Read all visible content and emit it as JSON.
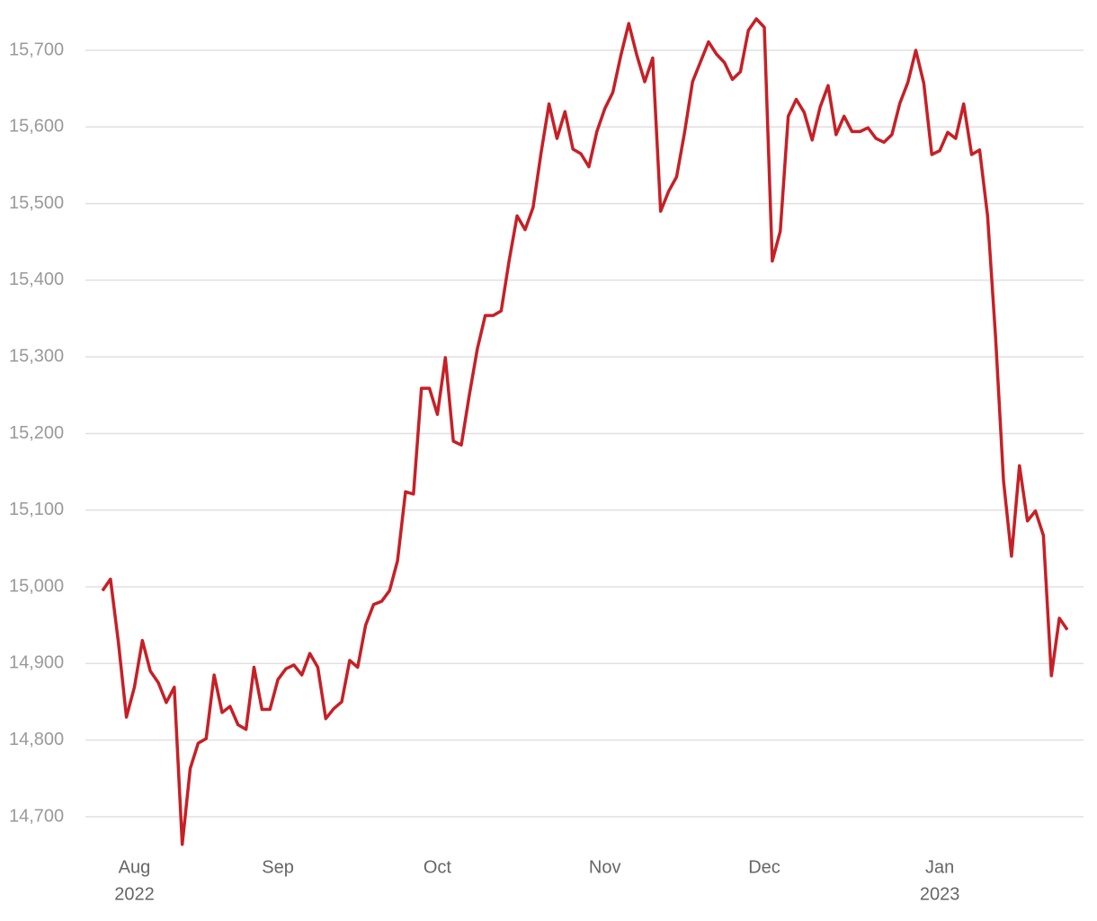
{
  "chart_data": {
    "type": "line",
    "categories": [
      null,
      null,
      null,
      null,
      "Aug",
      null,
      null,
      null,
      null,
      null,
      null,
      null,
      null,
      null,
      null,
      null,
      null,
      null,
      null,
      null,
      null,
      null,
      "Sep",
      null,
      null,
      null,
      null,
      null,
      null,
      null,
      null,
      null,
      null,
      null,
      null,
      null,
      null,
      null,
      null,
      null,
      null,
      null,
      "Oct",
      null,
      null,
      null,
      null,
      null,
      null,
      null,
      null,
      null,
      null,
      null,
      null,
      null,
      null,
      null,
      null,
      null,
      null,
      null,
      null,
      "Nov",
      null,
      null,
      null,
      null,
      null,
      null,
      null,
      null,
      null,
      null,
      null,
      null,
      null,
      null,
      null,
      null,
      null,
      null,
      null,
      "Dec",
      null,
      null,
      null,
      null,
      null,
      null,
      null,
      null,
      null,
      null,
      null,
      null,
      null,
      null,
      null,
      null,
      null,
      null,
      null,
      null,
      null,
      "Jan",
      null,
      null,
      null,
      null,
      null,
      null,
      null,
      null,
      null,
      null,
      null,
      null,
      null,
      null,
      null,
      null
    ],
    "x_year_labels": [
      null,
      null,
      null,
      null,
      "2022",
      null,
      null,
      null,
      null,
      null,
      null,
      null,
      null,
      null,
      null,
      null,
      null,
      null,
      null,
      null,
      null,
      null,
      null,
      null,
      null,
      null,
      null,
      null,
      null,
      null,
      null,
      null,
      null,
      null,
      null,
      null,
      null,
      null,
      null,
      null,
      null,
      null,
      null,
      null,
      null,
      null,
      null,
      null,
      null,
      null,
      null,
      null,
      null,
      null,
      null,
      null,
      null,
      null,
      null,
      null,
      null,
      null,
      null,
      null,
      null,
      null,
      null,
      null,
      null,
      null,
      null,
      null,
      null,
      null,
      null,
      null,
      null,
      null,
      null,
      null,
      null,
      null,
      null,
      null,
      null,
      null,
      null,
      null,
      null,
      null,
      null,
      null,
      null,
      null,
      null,
      null,
      null,
      null,
      null,
      null,
      null,
      null,
      null,
      null,
      null,
      "2023",
      null,
      null,
      null,
      null,
      null,
      null,
      null,
      null,
      null,
      null,
      null,
      null,
      null,
      null,
      null,
      null
    ],
    "values": [
      14995,
      15010,
      14927,
      14830,
      14869,
      14930,
      14890,
      14875,
      14849,
      14869,
      14664,
      14763,
      14796,
      14802,
      14885,
      14836,
      14844,
      14820,
      14814,
      14895,
      14840,
      14840,
      14879,
      14893,
      14898,
      14885,
      14913,
      14895,
      14828,
      14841,
      14850,
      14904,
      14895,
      14950,
      14977,
      14981,
      14995,
      15034,
      15124,
      15121,
      15259,
      15259,
      15225,
      15299,
      15190,
      15185,
      15250,
      15310,
      15354,
      15354,
      15360,
      15426,
      15484,
      15466,
      15495,
      15566,
      15630,
      15585,
      15620,
      15571,
      15565,
      15548,
      15594,
      15624,
      15645,
      15693,
      15735,
      15694,
      15659,
      15690,
      15490,
      15516,
      15535,
      15593,
      15659,
      15685,
      15711,
      15695,
      15684,
      15662,
      15672,
      15726,
      15741,
      15730,
      15425,
      15464,
      15614,
      15636,
      15619,
      15583,
      15626,
      15654,
      15590,
      15614,
      15594,
      15594,
      15599,
      15585,
      15580,
      15590,
      15631,
      15658,
      15700,
      15657,
      15564,
      15569,
      15593,
      15585,
      15630,
      15564,
      15570,
      15484,
      15326,
      15138,
      15040,
      15158,
      15086,
      15099,
      15067,
      14884,
      14959,
      14944
    ],
    "color": "#c62026",
    "ylim": [
      14660,
      15745
    ],
    "yticks": [
      {
        "value": 14700,
        "label": "14,700"
      },
      {
        "value": 14800,
        "label": "14,800"
      },
      {
        "value": 14900,
        "label": "14,900"
      },
      {
        "value": 15000,
        "label": "15,000"
      },
      {
        "value": 15100,
        "label": "15,100"
      },
      {
        "value": 15200,
        "label": "15,200"
      },
      {
        "value": 15300,
        "label": "15,300"
      },
      {
        "value": 15400,
        "label": "15,400"
      },
      {
        "value": 15500,
        "label": "15,500"
      },
      {
        "value": 15600,
        "label": "15,600"
      },
      {
        "value": 15700,
        "label": "15,700"
      }
    ],
    "grid": true
  }
}
